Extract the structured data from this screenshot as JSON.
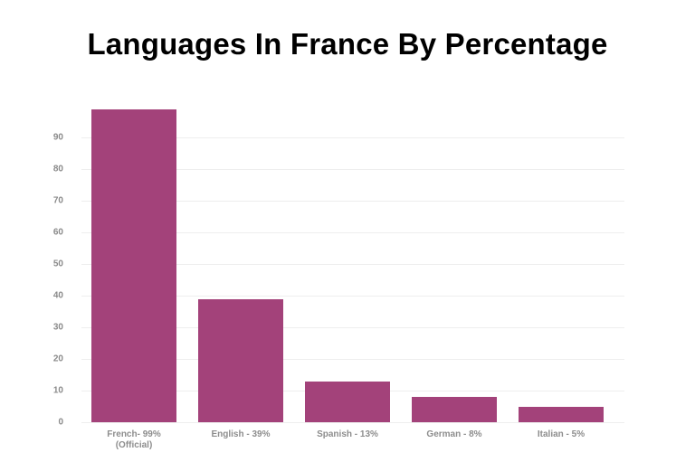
{
  "title": "Languages In France By Percentage",
  "colors": {
    "bar": "#a3427a",
    "grid": "#eeeeee",
    "tick_text": "#8a8a8a"
  },
  "y_ticks": [
    "0",
    "10",
    "20",
    "30",
    "40",
    "50",
    "60",
    "70",
    "80",
    "90"
  ],
  "x_labels": [
    {
      "line1": "French- 99%",
      "line2": "(Official)"
    },
    {
      "line1": "English - 39%",
      "line2": ""
    },
    {
      "line1": "Spanish - 13%",
      "line2": ""
    },
    {
      "line1": "German - 8%",
      "line2": ""
    },
    {
      "line1": "Italian - 5%",
      "line2": ""
    }
  ],
  "chart_data": {
    "type": "bar",
    "title": "Languages In France By Percentage",
    "categories": [
      "French- 99% (Official)",
      "English - 39%",
      "Spanish - 13%",
      "German - 8%",
      "Italian - 5%"
    ],
    "values": [
      99,
      39,
      13,
      8,
      5
    ],
    "xlabel": "",
    "ylabel": "",
    "ylim": [
      0,
      100
    ],
    "yticks": [
      0,
      10,
      20,
      30,
      40,
      50,
      60,
      70,
      80,
      90
    ],
    "grid": true,
    "legend": null,
    "color": "#a3427a"
  }
}
